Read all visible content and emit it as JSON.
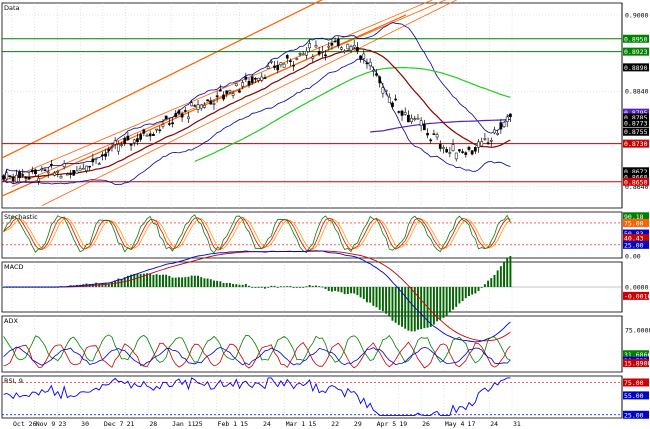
{
  "window": {
    "panes": {
      "price": {
        "title": "Data"
      },
      "stoch": {
        "title": "Stochastic"
      },
      "macd": {
        "title": "MACD"
      },
      "adx": {
        "title": "ADX"
      },
      "rsi": {
        "title": "RSI, 9"
      }
    }
  },
  "colors": {
    "bg": "#ffffff",
    "grid": "#c8c8c8",
    "candle": "#000000",
    "bollinger": "#0000a0",
    "ma_short": "#8b0000",
    "ma_mid": "#22cc22",
    "ma_long": "#5020c0",
    "channel": "#ff6000",
    "horizontal_green": "#008000",
    "horizontal_red": "#cc0000",
    "stoch_k": "#008000",
    "stoch_d": "#ff0000",
    "stoch_s": "#ffa000",
    "macd_line": "#0000cc",
    "macd_signal": "#cc0000",
    "macd_hist": "#006400",
    "adx_plus": "#008000",
    "adx_minus": "#cc0000",
    "adx_line": "#0000cc",
    "rsi_line": "#0000ff"
  },
  "chart_data": [
    {
      "type": "candlestick",
      "title": "Data",
      "x_ticks": [
        "Oct 26",
        "Nov 9",
        "23",
        "30",
        "Dec 7",
        "21",
        "28",
        "Jan 11",
        "25",
        "Feb 1",
        "15",
        "24",
        "Mar 1",
        "15",
        "22",
        "29",
        "Apr 5",
        "19",
        "26",
        "May 4",
        "17",
        "24",
        "31"
      ],
      "y_ticks": [
        0.864,
        0.884,
        0.9
      ],
      "y_labels": [
        "0.8640",
        "0.8840",
        "0.9000"
      ],
      "price_labels": [
        {
          "text": "0.8950",
          "value": 0.895,
          "color": "#008000"
        },
        {
          "text": "0.8923",
          "value": 0.8923,
          "color": "#008000"
        },
        {
          "text": "0.8890",
          "value": 0.889,
          "color": "#000000"
        },
        {
          "text": "0.8795",
          "value": 0.8795,
          "color": "#5020c0"
        },
        {
          "text": "0.8785",
          "value": 0.8785,
          "color": "#000000"
        },
        {
          "text": "0.8773",
          "value": 0.8773,
          "color": "#000000"
        },
        {
          "text": "0.8755",
          "value": 0.8755,
          "color": "#000000"
        },
        {
          "text": "0.8730",
          "value": 0.873,
          "color": "#cc0000"
        },
        {
          "text": "0.8672",
          "value": 0.8672,
          "color": "#000000"
        },
        {
          "text": "0.8660",
          "value": 0.866,
          "color": "#000000"
        },
        {
          "text": "0.8650",
          "value": 0.865,
          "color": "#cc0000"
        }
      ],
      "horizontal_lines": [
        {
          "value": 0.895,
          "color": "#008000"
        },
        {
          "value": 0.8923,
          "color": "#008000"
        },
        {
          "value": 0.873,
          "color": "#cc0000"
        },
        {
          "value": 0.865,
          "color": "#cc0000"
        }
      ],
      "ylim": [
        0.8595,
        0.9025
      ],
      "grid": true
    },
    {
      "type": "line",
      "title": "Stochastic",
      "y_labels": [
        {
          "text": "90.18",
          "value": 90.18,
          "color": "#008000"
        },
        {
          "text": "75.00",
          "value": 75.0,
          "color": "#ff6000"
        },
        {
          "text": "50.83",
          "value": 50.83,
          "color": "#0000cc"
        },
        {
          "text": "40.43",
          "value": 40.43,
          "color": "#cc0000"
        },
        {
          "text": "25.00",
          "value": 25.0,
          "color": "#0000cc"
        },
        {
          "text": "0.00",
          "value": 0.0,
          "color": "#000000"
        }
      ],
      "ylim": [
        -5,
        100
      ],
      "levels": [
        75,
        25
      ]
    },
    {
      "type": "line",
      "title": "MACD",
      "y_labels": [
        {
          "text": "0.0000",
          "value": 0.0,
          "color": "#000000"
        },
        {
          "text": "-0.0016",
          "value": -0.0016,
          "color": "#cc0000"
        }
      ],
      "ylim": [
        -0.0045,
        0.0045
      ]
    },
    {
      "type": "line",
      "title": "ADX",
      "y_labels": [
        {
          "text": "75.0000",
          "value": 75.0,
          "color": "#000000"
        },
        {
          "text": "31.6866",
          "value": 31.6866,
          "color": "#008000"
        },
        {
          "text": "20.5334",
          "value": 20.5334,
          "color": "#0000cc"
        },
        {
          "text": "15.8900",
          "value": 15.89,
          "color": "#cc0000"
        }
      ],
      "ylim": [
        0,
        100
      ]
    },
    {
      "type": "line",
      "title": "RSI, 9",
      "y_labels": [
        {
          "text": "75.00",
          "value": 75.0,
          "color": "#cc0000"
        },
        {
          "text": "55.00",
          "value": 55.0,
          "color": "#0000cc"
        },
        {
          "text": "25.00",
          "value": 25.0,
          "color": "#0000cc"
        }
      ],
      "ylim": [
        20,
        85
      ],
      "levels": [
        75,
        25
      ]
    }
  ]
}
